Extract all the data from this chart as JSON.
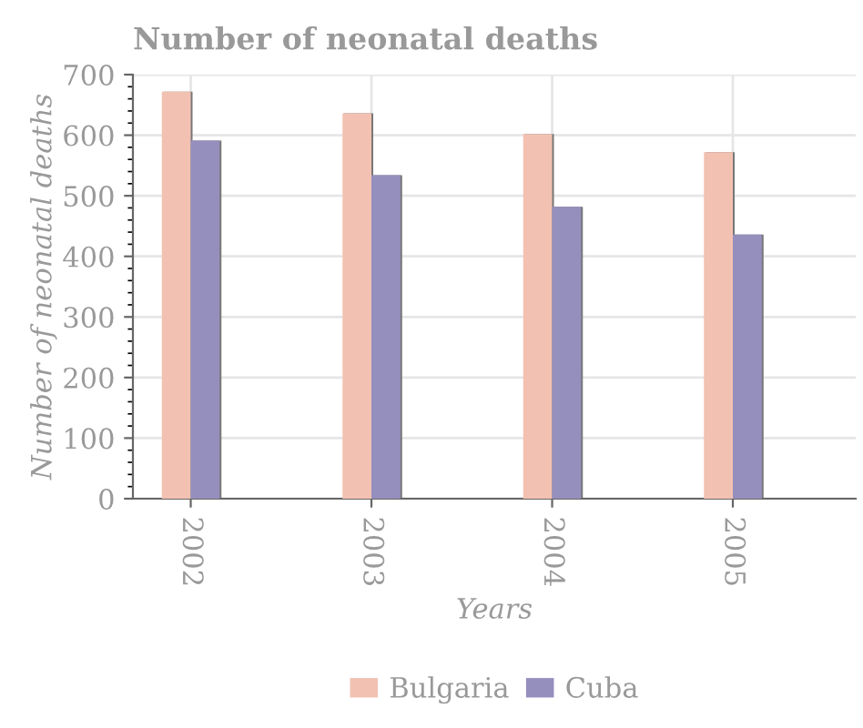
{
  "chart_data": {
    "type": "bar",
    "title": "Number of neonatal deaths",
    "xlabel": "Years",
    "ylabel": "Number of neonatal deaths",
    "categories": [
      "2002",
      "2003",
      "2004",
      "2005"
    ],
    "series": [
      {
        "name": "Bulgaria",
        "color": "#f2c1b2",
        "values": [
          672,
          636,
          602,
          572
        ]
      },
      {
        "name": "Cuba",
        "color": "#958fbe",
        "values": [
          591,
          534,
          482,
          436
        ]
      }
    ],
    "ylim": [
      0,
      700
    ],
    "yticks": [
      0,
      100,
      200,
      300,
      400,
      500,
      600,
      700
    ],
    "grid": true,
    "legend": "bottom"
  }
}
